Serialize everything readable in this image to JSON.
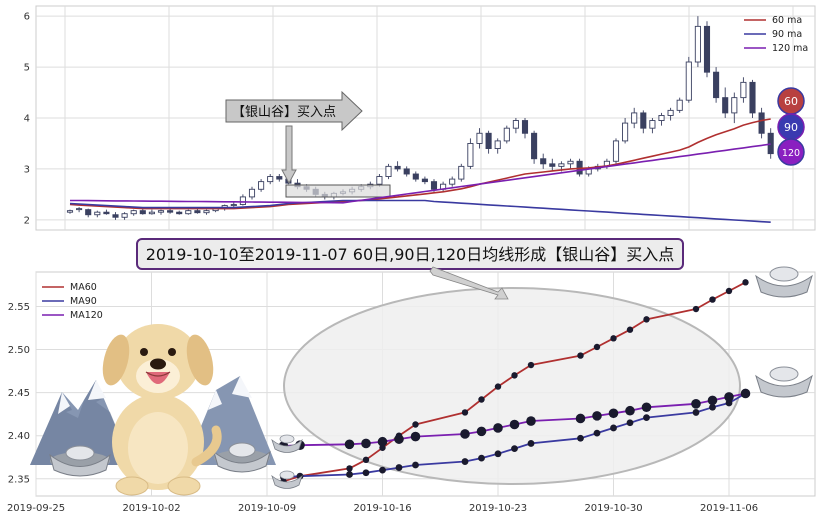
{
  "colors": {
    "ma60": "#b03030",
    "ma90": "#3a3aa0",
    "ma120": "#7a1fb0",
    "candle": "#3a4060",
    "grid": "#dddddd",
    "highlight_fill": "#eeeeee",
    "banner_fill": "#ececec",
    "banner_border": "#5a2a7a"
  },
  "icons": [
    "dog-mascot-icon",
    "mountain-icon",
    "silver-ingot-icon"
  ],
  "top_chart": {
    "legend": [
      "60 ma",
      "90 ma",
      "120 ma"
    ],
    "ylim": [
      1.8,
      6.2
    ],
    "y_ticks": [
      "2",
      "3",
      "4",
      "5",
      "6"
    ],
    "callout": "【银山谷】买入点",
    "badges": [
      "60",
      "90",
      "120"
    ],
    "candles": [
      [
        2.15,
        2.2,
        2.12,
        2.18
      ],
      [
        2.2,
        2.25,
        2.15,
        2.22
      ],
      [
        2.2,
        2.22,
        2.05,
        2.1
      ],
      [
        2.1,
        2.18,
        2.05,
        2.15
      ],
      [
        2.15,
        2.2,
        2.1,
        2.12
      ],
      [
        2.1,
        2.15,
        2.0,
        2.05
      ],
      [
        2.05,
        2.15,
        2.0,
        2.12
      ],
      [
        2.12,
        2.2,
        2.08,
        2.18
      ],
      [
        2.18,
        2.22,
        2.1,
        2.12
      ],
      [
        2.12,
        2.2,
        2.1,
        2.15
      ],
      [
        2.15,
        2.2,
        2.1,
        2.18
      ],
      [
        2.18,
        2.22,
        2.12,
        2.15
      ],
      [
        2.15,
        2.18,
        2.1,
        2.12
      ],
      [
        2.12,
        2.2,
        2.1,
        2.18
      ],
      [
        2.18,
        2.22,
        2.12,
        2.14
      ],
      [
        2.14,
        2.2,
        2.1,
        2.18
      ],
      [
        2.18,
        2.25,
        2.15,
        2.22
      ],
      [
        2.22,
        2.3,
        2.18,
        2.28
      ],
      [
        2.28,
        2.35,
        2.22,
        2.3
      ],
      [
        2.3,
        2.5,
        2.28,
        2.45
      ],
      [
        2.45,
        2.65,
        2.4,
        2.6
      ],
      [
        2.6,
        2.8,
        2.55,
        2.75
      ],
      [
        2.75,
        2.9,
        2.7,
        2.85
      ],
      [
        2.85,
        2.9,
        2.75,
        2.8
      ],
      [
        2.8,
        2.88,
        2.7,
        2.72
      ],
      [
        2.72,
        2.8,
        2.6,
        2.65
      ],
      [
        2.65,
        2.7,
        2.55,
        2.6
      ],
      [
        2.6,
        2.65,
        2.45,
        2.5
      ],
      [
        2.5,
        2.55,
        2.4,
        2.45
      ],
      [
        2.45,
        2.55,
        2.4,
        2.52
      ],
      [
        2.52,
        2.6,
        2.48,
        2.55
      ],
      [
        2.55,
        2.65,
        2.5,
        2.6
      ],
      [
        2.6,
        2.7,
        2.55,
        2.65
      ],
      [
        2.65,
        2.75,
        2.6,
        2.7
      ],
      [
        2.7,
        2.9,
        2.65,
        2.85
      ],
      [
        2.85,
        3.1,
        2.8,
        3.05
      ],
      [
        3.05,
        3.15,
        2.95,
        3.0
      ],
      [
        3.0,
        3.05,
        2.85,
        2.9
      ],
      [
        2.9,
        2.95,
        2.75,
        2.8
      ],
      [
        2.8,
        2.85,
        2.7,
        2.75
      ],
      [
        2.75,
        2.8,
        2.55,
        2.6
      ],
      [
        2.6,
        2.75,
        2.55,
        2.7
      ],
      [
        2.7,
        2.85,
        2.65,
        2.8
      ],
      [
        2.8,
        3.1,
        2.75,
        3.05
      ],
      [
        3.05,
        3.6,
        3.0,
        3.5
      ],
      [
        3.5,
        3.8,
        3.4,
        3.7
      ],
      [
        3.7,
        3.75,
        3.3,
        3.4
      ],
      [
        3.4,
        3.6,
        3.3,
        3.55
      ],
      [
        3.55,
        3.85,
        3.5,
        3.8
      ],
      [
        3.8,
        4.0,
        3.7,
        3.95
      ],
      [
        3.95,
        4.0,
        3.6,
        3.7
      ],
      [
        3.7,
        3.75,
        3.1,
        3.2
      ],
      [
        3.2,
        3.3,
        3.0,
        3.1
      ],
      [
        3.1,
        3.2,
        2.95,
        3.05
      ],
      [
        3.05,
        3.15,
        2.95,
        3.1
      ],
      [
        3.1,
        3.2,
        3.0,
        3.15
      ],
      [
        3.15,
        3.2,
        2.85,
        2.9
      ],
      [
        2.9,
        3.05,
        2.85,
        3.0
      ],
      [
        3.0,
        3.1,
        2.95,
        3.05
      ],
      [
        3.05,
        3.2,
        3.0,
        3.15
      ],
      [
        3.15,
        3.6,
        3.1,
        3.55
      ],
      [
        3.55,
        4.0,
        3.5,
        3.9
      ],
      [
        3.9,
        4.2,
        3.8,
        4.1
      ],
      [
        4.1,
        4.15,
        3.7,
        3.8
      ],
      [
        3.8,
        4.0,
        3.7,
        3.95
      ],
      [
        3.95,
        4.1,
        3.85,
        4.05
      ],
      [
        4.05,
        4.2,
        3.95,
        4.15
      ],
      [
        4.15,
        4.4,
        4.1,
        4.35
      ],
      [
        4.35,
        5.2,
        4.3,
        5.1
      ],
      [
        5.1,
        6.0,
        5.0,
        5.8
      ],
      [
        5.8,
        5.9,
        4.8,
        4.9
      ],
      [
        4.9,
        5.0,
        4.3,
        4.4
      ],
      [
        4.4,
        4.6,
        4.0,
        4.1
      ],
      [
        4.1,
        4.5,
        3.9,
        4.4
      ],
      [
        4.4,
        4.8,
        4.3,
        4.7
      ],
      [
        4.7,
        4.75,
        4.0,
        4.1
      ],
      [
        4.1,
        4.2,
        3.6,
        3.7
      ],
      [
        3.7,
        3.8,
        3.2,
        3.3
      ]
    ],
    "ma60": [
      2.3,
      2.29,
      2.28,
      2.27,
      2.26,
      2.25,
      2.24,
      2.23,
      2.22,
      2.22,
      2.22,
      2.22,
      2.22,
      2.22,
      2.22,
      2.22,
      2.22,
      2.22,
      2.22,
      2.23,
      2.24,
      2.25,
      2.26,
      2.28,
      2.3,
      2.31,
      2.32,
      2.33,
      2.34,
      2.35,
      2.36,
      2.37,
      2.38,
      2.39,
      2.41,
      2.43,
      2.45,
      2.47,
      2.49,
      2.51,
      2.53,
      2.55,
      2.58,
      2.61,
      2.65,
      2.7,
      2.74,
      2.78,
      2.82,
      2.86,
      2.9,
      2.92,
      2.94,
      2.96,
      2.98,
      3.0,
      3.01,
      3.02,
      3.04,
      3.06,
      3.09,
      3.13,
      3.17,
      3.21,
      3.25,
      3.29,
      3.33,
      3.37,
      3.43,
      3.52,
      3.6,
      3.67,
      3.73,
      3.79,
      3.86,
      3.91,
      3.95,
      3.98
    ]
  },
  "bottom_chart": {
    "banner": "2019-10-10至2019-11-07 60日,90日,120日均线形成【银山谷】买入点",
    "legend": [
      "MA60",
      "MA90",
      "MA120"
    ],
    "ylim": [
      2.33,
      2.59
    ],
    "y_ticks": [
      "2.35",
      "2.40",
      "2.45",
      "2.50",
      "2.55"
    ],
    "x_ticks": [
      "2019-09-25",
      "2019-10-02",
      "2019-10-09",
      "2019-10-16",
      "2019-10-23",
      "2019-10-30",
      "2019-11-06"
    ]
  },
  "chart_data": [
    {
      "type": "candlestick",
      "series": [
        {
          "name": "60 ma"
        },
        {
          "name": "90 ma"
        },
        {
          "name": "120 ma"
        }
      ],
      "ylim": [
        1.8,
        6.2
      ],
      "annotations": [
        "【银山谷】买入点"
      ]
    },
    {
      "type": "line",
      "x": [
        "2019-10-10",
        "2019-10-11",
        "2019-10-14",
        "2019-10-15",
        "2019-10-16",
        "2019-10-17",
        "2019-10-18",
        "2019-10-21",
        "2019-10-22",
        "2019-10-23",
        "2019-10-24",
        "2019-10-25",
        "2019-10-28",
        "2019-10-29",
        "2019-10-30",
        "2019-10-31",
        "2019-11-01",
        "2019-11-04",
        "2019-11-05",
        "2019-11-06",
        "2019-11-07"
      ],
      "series": [
        {
          "name": "MA60",
          "values": [
            2.347,
            2.353,
            2.362,
            2.372,
            2.386,
            2.4,
            2.413,
            2.427,
            2.442,
            2.457,
            2.47,
            2.482,
            2.493,
            2.503,
            2.513,
            2.523,
            2.535,
            2.547,
            2.558,
            2.568,
            2.578
          ]
        },
        {
          "name": "MA90",
          "values": [
            2.352,
            2.353,
            2.355,
            2.357,
            2.36,
            2.363,
            2.366,
            2.37,
            2.374,
            2.379,
            2.385,
            2.391,
            2.397,
            2.403,
            2.409,
            2.415,
            2.421,
            2.427,
            2.433,
            2.438,
            2.449
          ]
        },
        {
          "name": "MA120",
          "values": [
            2.388,
            2.389,
            2.39,
            2.391,
            2.393,
            2.396,
            2.399,
            2.402,
            2.405,
            2.409,
            2.413,
            2.417,
            2.42,
            2.423,
            2.426,
            2.429,
            2.433,
            2.437,
            2.441,
            2.445,
            2.449
          ]
        }
      ],
      "ylim": [
        2.33,
        2.59
      ],
      "title": "2019-10-10至2019-11-07 60日,90日,120日均线形成【银山谷】买入点"
    }
  ]
}
